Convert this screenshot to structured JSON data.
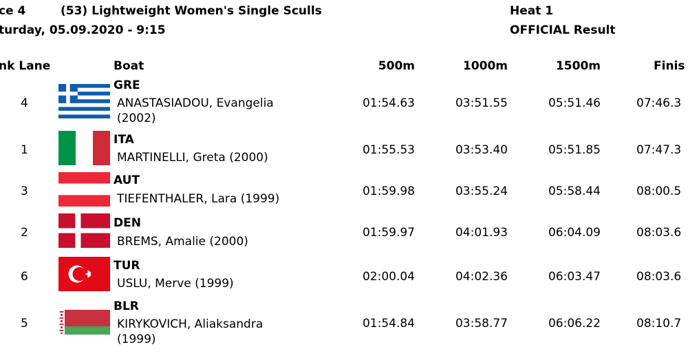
{
  "header": {
    "race": "ce 4",
    "event": "(53) Lightweight Women's Single Sculls",
    "date": "turday, 05.09.2020 - 9:15",
    "heat": "Heat 1",
    "status": "OFFICIAL Result"
  },
  "columns": {
    "rank_lane": "nk Lane",
    "boat": "Boat",
    "m500": "500m",
    "m1000": "1000m",
    "m1500": "1500m",
    "finish": "Finis"
  },
  "rows": [
    {
      "lane": "4",
      "country": "GRE",
      "name": "ANASTASIADOU, Evangelia (2002)",
      "flag": "gre-flag-icon",
      "t500": "01:54.63",
      "t1000": "03:51.55",
      "t1500": "05:51.46",
      "finish": "07:46.3"
    },
    {
      "lane": "1",
      "country": "ITA",
      "name": "MARTINELLI, Greta (2000)",
      "flag": "ita-flag-icon",
      "t500": "01:55.53",
      "t1000": "03:53.40",
      "t1500": "05:51.85",
      "finish": "07:47.3"
    },
    {
      "lane": "3",
      "country": "AUT",
      "name": "TIEFENTHALER, Lara (1999)",
      "flag": "aut-flag-icon",
      "t500": "01:59.98",
      "t1000": "03:55.24",
      "t1500": "05:58.44",
      "finish": "08:00.5"
    },
    {
      "lane": "2",
      "country": "DEN",
      "name": "BREMS, Amalie (2000)",
      "flag": "den-flag-icon",
      "t500": "01:59.97",
      "t1000": "04:01.93",
      "t1500": "06:04.09",
      "finish": "08:03.6"
    },
    {
      "lane": "6",
      "country": "TUR",
      "name": "USLU, Merve (1999)",
      "flag": "tur-flag-icon",
      "t500": "02:00.04",
      "t1000": "04:02.36",
      "t1500": "06:03.47",
      "finish": "08:03.6"
    },
    {
      "lane": "5",
      "country": "BLR",
      "name": "KIRYKOVICH, Aliaksandra (1999)",
      "flag": "blr-flag-icon",
      "t500": "01:54.84",
      "t1000": "03:58.77",
      "t1500": "06:06.22",
      "finish": "08:10.7"
    }
  ],
  "colors": {
    "gre_blue": "#0D5EAF",
    "ita_green": "#009246",
    "ita_red": "#CE2B37",
    "aut_red": "#ED2939",
    "den_red": "#C8102E",
    "tur_red": "#E30A17",
    "blr_red": "#C8313E",
    "blr_green": "#4AA657"
  }
}
